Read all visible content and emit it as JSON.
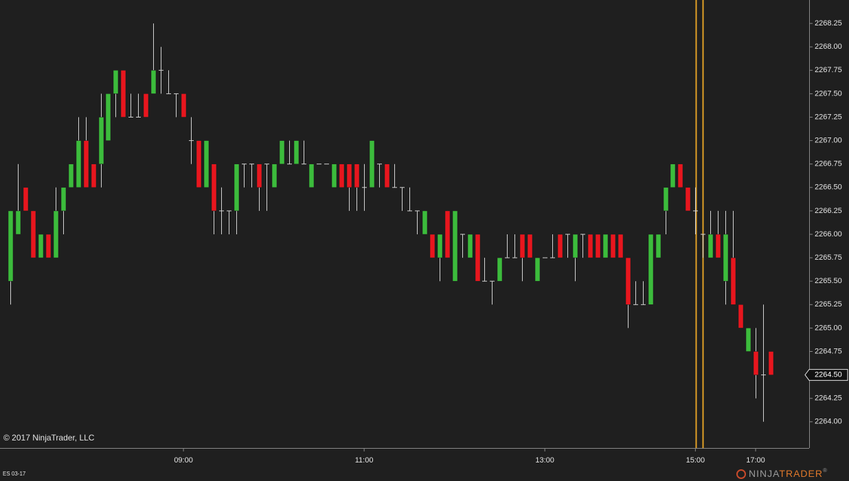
{
  "chart_data": {
    "type": "candlestick",
    "instrument": "ES 03-17",
    "copyright": "© 2017 NinjaTrader, LLC",
    "up_color": "#3cbc3c",
    "down_color": "#e8161e",
    "wick_color": "#d4d4d4",
    "session_color": "#e3a126",
    "categories": [
      null,
      null,
      null,
      null,
      null,
      null,
      null,
      null,
      null,
      null,
      null,
      null,
      null,
      null,
      null,
      null,
      null,
      null,
      null,
      null,
      null,
      null,
      null,
      "09:00",
      null,
      null,
      null,
      null,
      null,
      null,
      null,
      null,
      null,
      null,
      null,
      null,
      null,
      null,
      null,
      null,
      null,
      null,
      null,
      null,
      null,
      null,
      null,
      "11:00",
      null,
      null,
      null,
      null,
      null,
      null,
      null,
      null,
      null,
      null,
      null,
      null,
      null,
      null,
      null,
      null,
      null,
      null,
      null,
      null,
      null,
      null,
      null,
      "13:00",
      null,
      null,
      null,
      null,
      null,
      null,
      null,
      null,
      null,
      null,
      null,
      null,
      null,
      null,
      null,
      null,
      null,
      null,
      null,
      "15:00",
      null,
      null,
      null,
      null,
      null,
      null,
      null,
      "17:00",
      null,
      null
    ],
    "open": [
      2265.5,
      2266,
      2266.5,
      2266.25,
      2265.75,
      2266,
      2265.75,
      2266.25,
      2266.5,
      2266.5,
      2267,
      2266.75,
      2266.75,
      2267,
      2267.5,
      2267.75,
      2267.25,
      2267.25,
      2267.5,
      2267.5,
      2267.75,
      2267.5,
      2267.5,
      2267.5,
      2267,
      2267,
      2266.5,
      2266.75,
      2266.25,
      2266.25,
      2266.25,
      2266.75,
      2266.75,
      2266.75,
      2266.75,
      2266.5,
      2266.75,
      2266.75,
      2266.75,
      2266.75,
      2266.5,
      2266.75,
      2266.75,
      2266.5,
      2266.75,
      2266.75,
      2266.75,
      2266.5,
      2266.5,
      2266.75,
      2266.75,
      2266.5,
      2266.5,
      2266.25,
      2266.25,
      2266,
      2266,
      2265.75,
      2266.25,
      2265.5,
      2266,
      2265.75,
      2266,
      2265.5,
      2265.5,
      2265.5,
      2265.75,
      2265.75,
      2266,
      2266,
      2265.5,
      2265.75,
      2265.75,
      2266,
      2266,
      2265.75,
      2266,
      2266,
      2266,
      2265.75,
      2266,
      2266,
      2265.75,
      2265.25,
      2265.25,
      2265.25,
      2265.75,
      2266.25,
      2266.5,
      2266.75,
      2266.5,
      2266.25,
      2266,
      2265.75,
      2266,
      2265.5,
      2265.75,
      2265.25,
      2264.75,
      2264.75,
      2264.5,
      2264.75
    ],
    "high": [
      2266.25,
      2266.75,
      2266.5,
      2266.25,
      2266,
      2266,
      2266.5,
      2266.5,
      2266.75,
      2267.25,
      2267.25,
      2266.75,
      2267.5,
      2267.5,
      2267.75,
      2267.75,
      2267.5,
      2267.5,
      2267.5,
      2268.25,
      2268,
      2267.75,
      2267.5,
      2267.5,
      2267.25,
      2267,
      2267,
      2266.75,
      2266.5,
      2266.25,
      2266.75,
      2266.75,
      2266.75,
      2266.75,
      2266.75,
      2266.75,
      2267,
      2267,
      2267,
      2267,
      2266.75,
      2266.75,
      2266.75,
      2266.75,
      2266.75,
      2266.75,
      2266.75,
      2266.75,
      2267,
      2266.75,
      2266.75,
      2266.75,
      2266.5,
      2266.5,
      2266.25,
      2266.25,
      2266,
      2266,
      2266.25,
      2266.25,
      2266,
      2266,
      2266,
      2265.75,
      2265.5,
      2265.75,
      2266,
      2266,
      2266,
      2266,
      2265.75,
      2265.75,
      2266,
      2266,
      2266,
      2266,
      2266,
      2266,
      2266,
      2266,
      2266,
      2266,
      2265.75,
      2265.5,
      2265.5,
      2266,
      2266,
      2266.5,
      2266.75,
      2266.75,
      2266.5,
      2266.5,
      2266,
      2266.25,
      2266.25,
      2266.25,
      2266.25,
      2265.25,
      2265,
      2265,
      2265.25,
      2264.75
    ],
    "low": [
      2265.25,
      2266,
      2266.25,
      2265.75,
      2265.75,
      2265.75,
      2265.75,
      2266,
      2266.5,
      2266.5,
      2266.5,
      2266.5,
      2266.5,
      2267,
      2267.25,
      2267.25,
      2267.25,
      2267.25,
      2267.25,
      2267.5,
      2267.5,
      2267.5,
      2267.25,
      2267.25,
      2266.75,
      2266.5,
      2266.5,
      2266,
      2266,
      2266,
      2266,
      2266.5,
      2266.5,
      2266.25,
      2266.25,
      2266.5,
      2266.75,
      2266.75,
      2266.75,
      2266.75,
      2266.5,
      2266.75,
      2266.75,
      2266.5,
      2266.5,
      2266.25,
      2266.25,
      2266.25,
      2266.5,
      2266.5,
      2266.5,
      2266.5,
      2266.25,
      2266.25,
      2266,
      2266,
      2265.75,
      2265.5,
      2265.75,
      2265.5,
      2265.75,
      2265.75,
      2265.5,
      2265.5,
      2265.25,
      2265.5,
      2265.75,
      2265.75,
      2265.5,
      2265.75,
      2265.5,
      2265.75,
      2265.75,
      2265.75,
      2265.75,
      2265.5,
      2265.75,
      2265.75,
      2265.75,
      2265.75,
      2265.75,
      2265.75,
      2265,
      2265.25,
      2265.25,
      2265.25,
      2265.75,
      2266,
      2266.5,
      2266.5,
      2266.25,
      2266,
      2265.75,
      2265.75,
      2265.75,
      2265.25,
      2265.25,
      2265,
      2264.75,
      2264.25,
      2264,
      2264.5
    ],
    "close": [
      2266.25,
      2266.25,
      2266.25,
      2265.75,
      2266,
      2265.75,
      2266.25,
      2266.5,
      2266.75,
      2267,
      2266.5,
      2266.5,
      2267.25,
      2267.5,
      2267.75,
      2267.25,
      2267.25,
      2267.25,
      2267.25,
      2267.75,
      2267.75,
      2267.5,
      2267.5,
      2267.25,
      2267,
      2266.5,
      2267,
      2266.25,
      2266.25,
      2266.25,
      2266.75,
      2266.75,
      2266.75,
      2266.5,
      2266.75,
      2266.75,
      2267,
      2266.75,
      2267,
      2266.75,
      2266.75,
      2266.75,
      2266.75,
      2266.75,
      2266.5,
      2266.5,
      2266.5,
      2266.5,
      2267,
      2266.75,
      2266.5,
      2266.5,
      2266.5,
      2266.25,
      2266.25,
      2266.25,
      2265.75,
      2266,
      2265.75,
      2266.25,
      2266,
      2266,
      2265.5,
      2265.5,
      2265.5,
      2265.75,
      2265.75,
      2265.75,
      2265.75,
      2265.75,
      2265.75,
      2265.75,
      2265.75,
      2265.75,
      2266,
      2266,
      2266,
      2265.75,
      2265.75,
      2266,
      2265.75,
      2265.75,
      2265.25,
      2265.25,
      2265.25,
      2266,
      2266,
      2266.5,
      2266.75,
      2266.5,
      2266.25,
      2266.25,
      2266,
      2266,
      2265.75,
      2266,
      2265.25,
      2265,
      2265,
      2264.5,
      2264.5,
      2264.5
    ],
    "ylim": [
      2263.72,
      2268.5
    ],
    "yticks": [
      {
        "value": 2264,
        "label": "2264.00"
      },
      2264.25,
      {
        "value": 2264.5,
        "label": "2264.50"
      },
      2264.75,
      {
        "value": 2265,
        "label": "2265.00"
      },
      2265.25,
      {
        "value": 2265.5,
        "label": "2265.50"
      },
      2265.75,
      {
        "value": 2266,
        "label": "2266.00"
      },
      2266.25,
      {
        "value": 2266.5,
        "label": "2266.50"
      },
      2266.75,
      {
        "value": 2267,
        "label": "2267.00"
      },
      2267.25,
      {
        "value": 2267.5,
        "label": "2267.50"
      },
      2267.75,
      {
        "value": 2268,
        "label": "2268.00"
      },
      2268.25
    ],
    "last_price": {
      "value": 2264.5,
      "label": "2264.50"
    }
  },
  "logo": {
    "left": "NINJA",
    "right": "TRADER",
    "mark": "®"
  }
}
